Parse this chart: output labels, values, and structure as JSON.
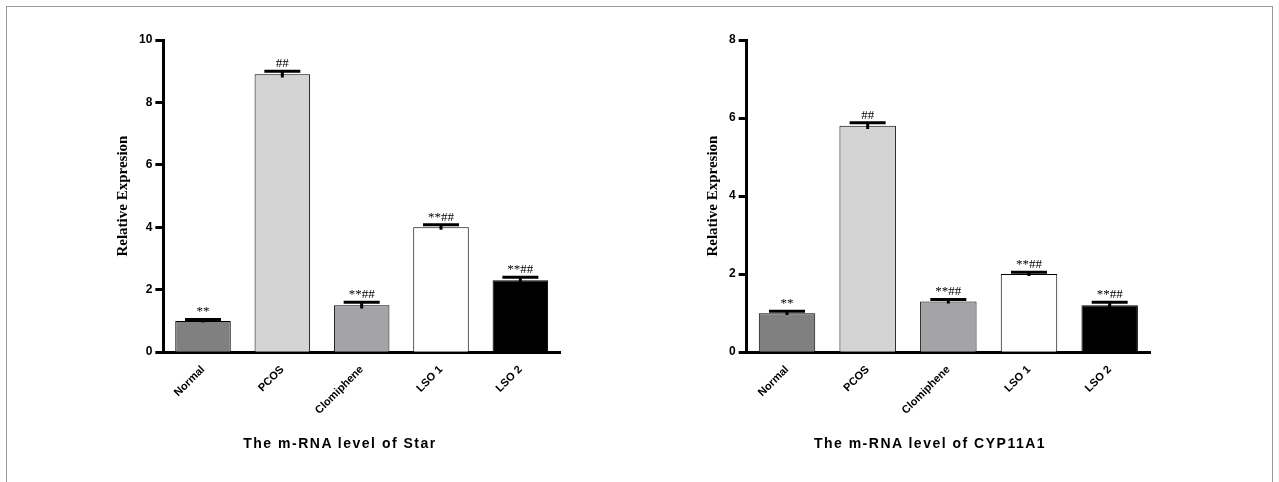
{
  "chart_data": [
    {
      "type": "bar",
      "title": "The m-RNA level of Star",
      "ylabel": "Relative Expresion",
      "categories": [
        "Normal",
        "PCOS",
        "Clomiphene",
        "LSO 1",
        "LSO 2"
      ],
      "values": [
        1.0,
        8.9,
        1.5,
        4.0,
        2.3
      ],
      "errors": [
        0.05,
        0.1,
        0.1,
        0.08,
        0.1
      ],
      "colors": [
        "#808080",
        "#d4d4d4",
        "#a4a4a8",
        "#ffffff",
        "#000000"
      ],
      "ylim": [
        0,
        10
      ],
      "yticks": [
        0,
        2,
        4,
        6,
        8,
        10
      ],
      "grid": false,
      "legend": false,
      "annotations": [
        {
          "text": "**",
          "x": "Normal",
          "y": 1.05
        },
        {
          "text": "##",
          "x": "PCOS",
          "y": 9.0
        },
        {
          "text": "**##",
          "x": "Clomiphene",
          "y": 1.6
        },
        {
          "text": "**##",
          "x": "LSO 1",
          "y": 4.08
        },
        {
          "text": "**##",
          "x": "LSO 2",
          "y": 2.4
        }
      ]
    },
    {
      "type": "bar",
      "title": "The m-RNA level of CYP11A1",
      "ylabel": "Relative Expresion",
      "categories": [
        "Normal",
        "PCOS",
        "Clomiphene",
        "LSO 1",
        "LSO 2"
      ],
      "values": [
        1.0,
        5.8,
        1.3,
        2.0,
        1.2
      ],
      "errors": [
        0.05,
        0.08,
        0.05,
        0.05,
        0.08
      ],
      "colors": [
        "#808080",
        "#d4d4d4",
        "#a4a4a8",
        "#ffffff",
        "#000000"
      ],
      "ylim": [
        0,
        8
      ],
      "yticks": [
        0,
        2,
        4,
        6,
        8
      ],
      "grid": false,
      "legend": false,
      "annotations": [
        {
          "text": "**",
          "x": "Normal",
          "y": 1.05
        },
        {
          "text": "##",
          "x": "PCOS",
          "y": 5.88
        },
        {
          "text": "**##",
          "x": "Clomiphene",
          "y": 1.35
        },
        {
          "text": "**##",
          "x": "LSO 1",
          "y": 2.05
        },
        {
          "text": "**##",
          "x": "LSO 2",
          "y": 1.28
        }
      ]
    }
  ]
}
